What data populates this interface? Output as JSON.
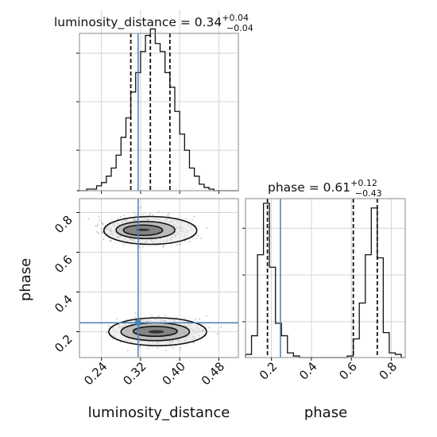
{
  "chart_data": [
    {
      "type": "histogram",
      "panel": "luminosity_distance marginal",
      "title": {
        "text": "luminosity_distance = 0.34",
        "sup": "+0.04",
        "sub": "−0.04"
      },
      "xlim": [
        0.195,
        0.52
      ],
      "ylim": [
        0,
        1
      ],
      "bins": {
        "edges": [
          0.19,
          0.2,
          0.21,
          0.22,
          0.23,
          0.24,
          0.25,
          0.26,
          0.27,
          0.28,
          0.29,
          0.3,
          0.31,
          0.32,
          0.33,
          0.34,
          0.35,
          0.36,
          0.37,
          0.38,
          0.39,
          0.4,
          0.41,
          0.42,
          0.43,
          0.44,
          0.45,
          0.46,
          0.47,
          0.48,
          0.49,
          0.5,
          0.51,
          0.52
        ],
        "counts": [
          0,
          0,
          0.01,
          0.01,
          0.03,
          0.05,
          0.09,
          0.14,
          0.22,
          0.33,
          0.45,
          0.61,
          0.73,
          0.86,
          0.96,
          1.0,
          0.91,
          0.86,
          0.73,
          0.64,
          0.49,
          0.35,
          0.25,
          0.14,
          0.09,
          0.04,
          0.02,
          0.01,
          0,
          0,
          0,
          0,
          0
        ]
      },
      "quantiles": [
        0.3,
        0.34,
        0.38
      ],
      "truth": 0.315
    },
    {
      "type": "scatter",
      "panel": "phase vs luminosity_distance",
      "xlabel": "luminosity_distance",
      "ylabel": "phase",
      "xlim": [
        0.195,
        0.52
      ],
      "ylim": [
        0.07,
        0.87
      ],
      "xticks": [
        "0.24",
        "0.32",
        "0.40",
        "0.48"
      ],
      "yticks": [
        "0.2",
        "0.4",
        "0.6",
        "0.8"
      ],
      "xtick_values": [
        0.24,
        0.32,
        0.4,
        0.48
      ],
      "ytick_values": [
        0.2,
        0.4,
        0.6,
        0.8
      ],
      "truth": [
        0.315,
        0.245
      ],
      "density_blobs": [
        {
          "cx": 0.33,
          "cy": 0.715,
          "sx": 0.038,
          "sy": 0.03
        },
        {
          "cx": 0.36,
          "cy": 0.2,
          "sx": 0.038,
          "sy": 0.03
        }
      ],
      "contours": [
        {
          "cx": 0.325,
          "cy": 0.713,
          "rx": 0.014,
          "ry": 0.006
        },
        {
          "cx": 0.325,
          "cy": 0.711,
          "rx": 0.04,
          "ry": 0.026
        },
        {
          "cx": 0.33,
          "cy": 0.712,
          "rx": 0.06,
          "ry": 0.043
        },
        {
          "cx": 0.34,
          "cy": 0.71,
          "rx": 0.095,
          "ry": 0.07
        },
        {
          "cx": 0.352,
          "cy": 0.2,
          "rx": 0.016,
          "ry": 0.008
        },
        {
          "cx": 0.35,
          "cy": 0.202,
          "rx": 0.045,
          "ry": 0.025
        },
        {
          "cx": 0.35,
          "cy": 0.2,
          "rx": 0.07,
          "ry": 0.045
        },
        {
          "cx": 0.355,
          "cy": 0.2,
          "rx": 0.1,
          "ry": 0.07
        }
      ]
    },
    {
      "type": "histogram",
      "panel": "phase marginal",
      "title": {
        "text": "phase = 0.61",
        "sup": "+0.12",
        "sub": "−0.43"
      },
      "xlabel": "phase",
      "xlim": [
        0.07,
        0.87
      ],
      "ylim": [
        0,
        1
      ],
      "xticks": [
        "0.2",
        "0.4",
        "0.6",
        "0.8"
      ],
      "xtick_values": [
        0.2,
        0.4,
        0.6,
        0.8
      ],
      "bins": {
        "edges": [
          0.07,
          0.1,
          0.13,
          0.16,
          0.19,
          0.22,
          0.25,
          0.28,
          0.31,
          0.34,
          0.37,
          0.4,
          0.43,
          0.46,
          0.49,
          0.52,
          0.55,
          0.58,
          0.61,
          0.64,
          0.67,
          0.7,
          0.73,
          0.76,
          0.79,
          0.82,
          0.85,
          0.87
        ],
        "counts": [
          0.02,
          0.14,
          0.66,
          0.99,
          0.58,
          0.22,
          0.14,
          0.03,
          0.01,
          0,
          0,
          0,
          0,
          0,
          0,
          0,
          0,
          0.01,
          0.12,
          0.35,
          0.66,
          0.96,
          0.64,
          0.16,
          0.03,
          0.02,
          0
        ]
      },
      "quantiles": [
        0.18,
        0.61,
        0.73
      ],
      "truth": 0.245
    }
  ]
}
